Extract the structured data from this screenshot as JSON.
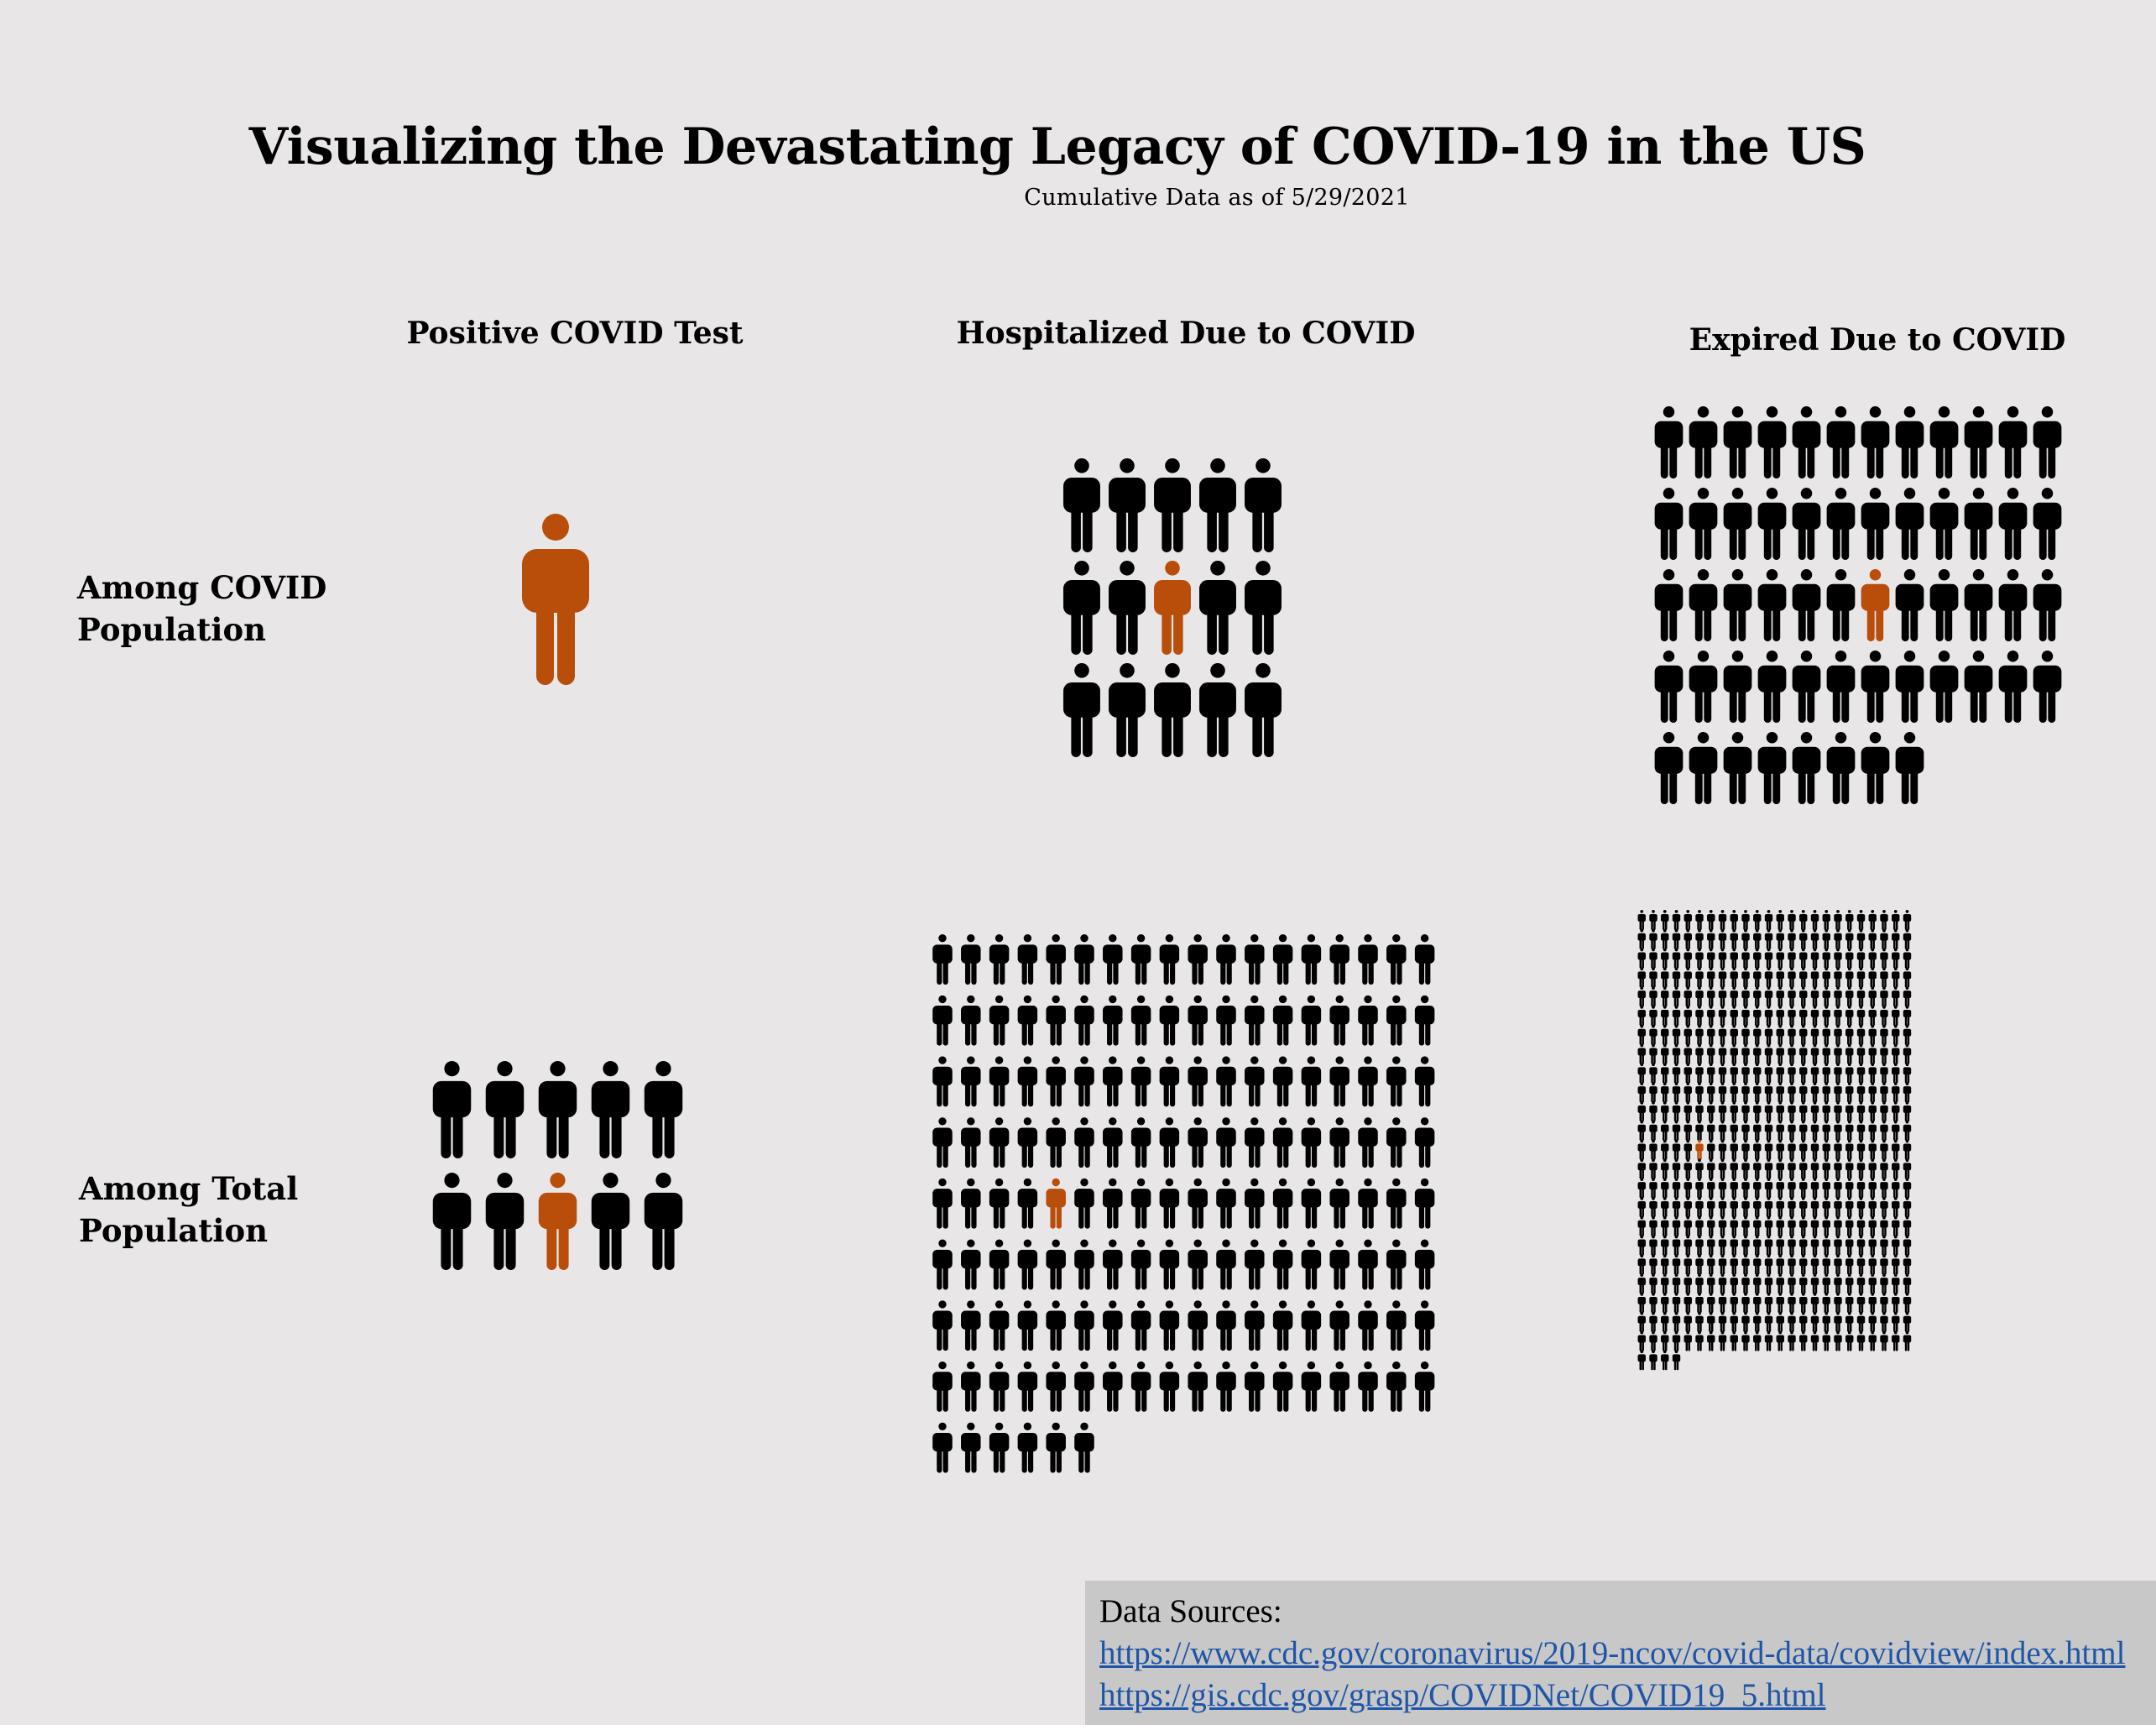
{
  "title": "Visualizing the Devastating Legacy of COVID-19 in the US",
  "subtitle": "Cumulative Data as of 5/29/2021",
  "columns": [
    {
      "label": "Positive COVID Test"
    },
    {
      "label": "Hospitalized Due to COVID"
    },
    {
      "label": "Expired Due to COVID"
    }
  ],
  "rows": [
    {
      "label": "Among COVID Population"
    },
    {
      "label": "Among Total Population"
    }
  ],
  "colors": {
    "highlight": "#b84e0a",
    "figure": "#000000",
    "background": "#e8e6e7",
    "sources_bg": "#c8c8c8",
    "link": "#1f55a8"
  },
  "icon": "person-icon",
  "chart_data": {
    "type": "pictogram",
    "description_unit": "1 highlighted person out of N people",
    "cells": [
      {
        "row": "Among COVID Population",
        "column": "Positive COVID Test",
        "total_people": 1,
        "highlighted_index": 0,
        "per_row": 1
      },
      {
        "row": "Among COVID Population",
        "column": "Hospitalized Due to COVID",
        "total_people": 15,
        "highlighted_index": 7,
        "per_row": 5
      },
      {
        "row": "Among COVID Population",
        "column": "Expired Due to COVID",
        "total_people": 56,
        "highlighted_index": 30,
        "per_row": 12
      },
      {
        "row": "Among Total Population",
        "column": "Positive COVID Test",
        "total_people": 10,
        "highlighted_index": 7,
        "per_row": 5
      },
      {
        "row": "Among Total Population",
        "column": "Hospitalized Due to COVID",
        "total_people": 150,
        "highlighted_index": 76,
        "per_row": 18
      },
      {
        "row": "Among Total Population",
        "column": "Expired Due to COVID",
        "total_people": 556,
        "highlighted_index": 293,
        "per_row": 24
      }
    ]
  },
  "sources": {
    "label": "Data Sources:",
    "links": [
      "https://www.cdc.gov/coronavirus/2019-ncov/covid-data/covidview/index.html",
      "https://gis.cdc.gov/grasp/COVIDNet/COVID19_5.html"
    ]
  }
}
